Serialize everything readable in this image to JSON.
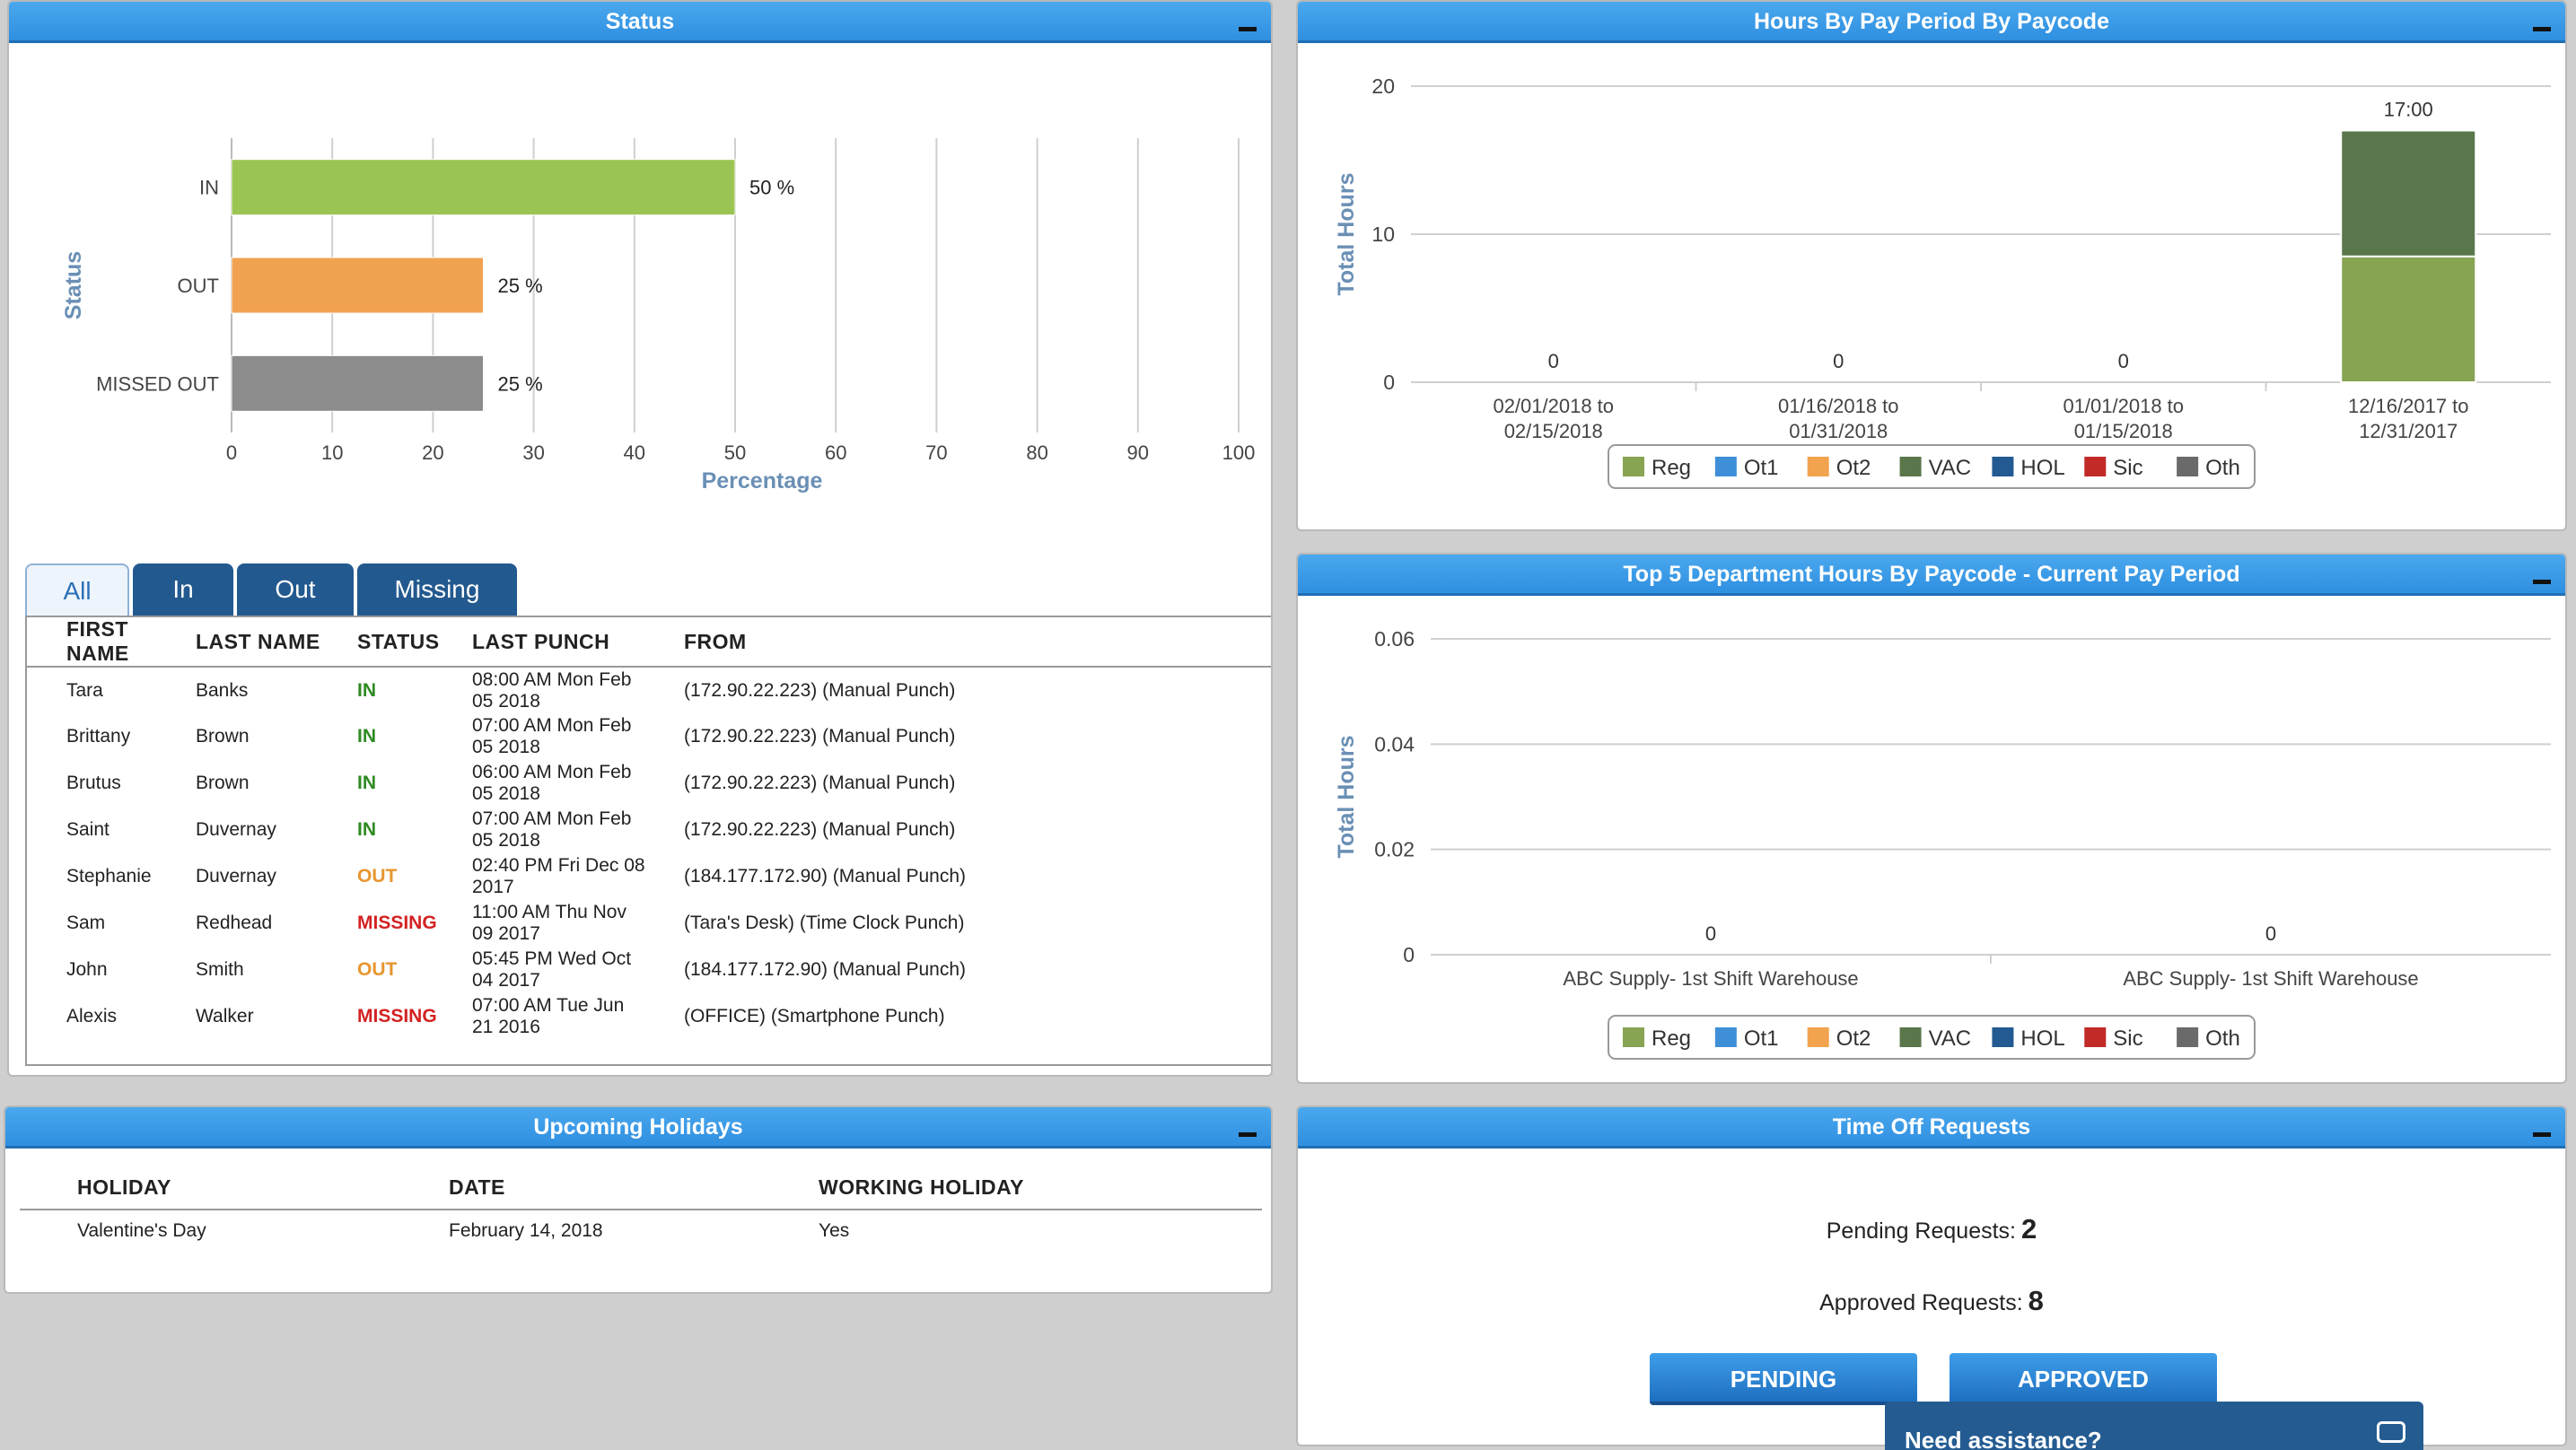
{
  "status_panel": {
    "title": "Status",
    "chart_data": {
      "type": "bar",
      "orientation": "horizontal",
      "categories": [
        "IN",
        "OUT",
        "MISSED OUT"
      ],
      "values": [
        50,
        25,
        25
      ],
      "value_labels": [
        "50 %",
        "25 %",
        "25 %"
      ],
      "colors": [
        "#9bc553",
        "#f1a251",
        "#8c8c8c"
      ],
      "xlabel": "Percentage",
      "ylabel": "Status",
      "xlim": [
        0,
        100
      ],
      "xticks": [
        "0",
        "10",
        "20",
        "30",
        "40",
        "50",
        "60",
        "70",
        "80",
        "90",
        "100"
      ],
      "grid": true
    },
    "tabs": [
      "All",
      "In",
      "Out",
      "Missing"
    ],
    "columns": [
      "FIRST NAME",
      "LAST NAME",
      "STATUS",
      "LAST PUNCH",
      "FROM"
    ],
    "rows": [
      {
        "first": "Tara",
        "last": "Banks",
        "status": "IN",
        "punch1": "08:00 AM Mon Feb",
        "punch2": "05 2018",
        "from": "(172.90.22.223) (Manual Punch)"
      },
      {
        "first": "Brittany",
        "last": "Brown",
        "status": "IN",
        "punch1": "07:00 AM Mon Feb",
        "punch2": "05 2018",
        "from": "(172.90.22.223) (Manual Punch)"
      },
      {
        "first": "Brutus",
        "last": "Brown",
        "status": "IN",
        "punch1": "06:00 AM Mon Feb",
        "punch2": "05 2018",
        "from": "(172.90.22.223) (Manual Punch)"
      },
      {
        "first": "Saint",
        "last": "Duvernay",
        "status": "IN",
        "punch1": "07:00 AM Mon Feb",
        "punch2": "05 2018",
        "from": "(172.90.22.223) (Manual Punch)"
      },
      {
        "first": "Stephanie",
        "last": "Duvernay",
        "status": "OUT",
        "punch1": "02:40 PM Fri Dec 08",
        "punch2": "2017",
        "from": "(184.177.172.90) (Manual Punch)"
      },
      {
        "first": "Sam",
        "last": "Redhead",
        "status": "MISSING",
        "punch1": "11:00 AM Thu Nov",
        "punch2": "09 2017",
        "from": "(Tara's Desk) (Time Clock Punch)"
      },
      {
        "first": "John",
        "last": "Smith",
        "status": "OUT",
        "punch1": "05:45 PM Wed Oct",
        "punch2": "04 2017",
        "from": "(184.177.172.90) (Manual Punch)"
      },
      {
        "first": "Alexis",
        "last": "Walker",
        "status": "MISSING",
        "punch1": "07:00 AM Tue Jun",
        "punch2": "21 2016",
        "from": "(OFFICE) (Smartphone Punch)"
      }
    ]
  },
  "hours_panel": {
    "title": "Hours By Pay Period By Paycode",
    "chart_data": {
      "type": "bar",
      "stacked": true,
      "categories": [
        [
          "02/01/2018 to",
          "02/15/2018"
        ],
        [
          "01/16/2018 to",
          "01/31/2018"
        ],
        [
          "01/01/2018 to",
          "01/15/2018"
        ],
        [
          "12/16/2017 to",
          "12/31/2017"
        ]
      ],
      "total_labels": [
        "0",
        "0",
        "0",
        "17:00"
      ],
      "series": [
        {
          "name": "Reg",
          "color": "#86a452",
          "values": [
            0,
            0,
            0,
            8.5
          ]
        },
        {
          "name": "VAC",
          "color": "#5a764b",
          "values": [
            0,
            0,
            0,
            8.5
          ]
        }
      ],
      "ylabel": "Total Hours",
      "ylim": [
        0,
        20
      ],
      "yticks": [
        "0",
        "10",
        "20"
      ],
      "grid": true
    }
  },
  "dept_panel": {
    "title": "Top 5 Department Hours By Paycode - Current Pay Period",
    "chart_data": {
      "type": "bar",
      "stacked": true,
      "categories": [
        "ABC Supply- 1st Shift Warehouse",
        "ABC Supply- 1st Shift Warehouse"
      ],
      "total_labels": [
        "0",
        "0"
      ],
      "series": [],
      "ylabel": "Total Hours",
      "ylim": [
        0,
        0.06
      ],
      "yticks": [
        "0",
        "0.02",
        "0.04",
        "0.06"
      ],
      "grid": true
    }
  },
  "legend": [
    {
      "name": "Reg",
      "color": "#86a452"
    },
    {
      "name": "Ot1",
      "color": "#3e8fd8"
    },
    {
      "name": "Ot2",
      "color": "#f2a34d"
    },
    {
      "name": "VAC",
      "color": "#5a764b"
    },
    {
      "name": "HOL",
      "color": "#225a91"
    },
    {
      "name": "Sic",
      "color": "#c22a27"
    },
    {
      "name": "Oth",
      "color": "#6a6a6a"
    }
  ],
  "holidays_panel": {
    "title": "Upcoming Holidays",
    "columns": [
      "HOLIDAY",
      "DATE",
      "WORKING HOLIDAY"
    ],
    "rows": [
      {
        "holiday": "Valentine's Day",
        "date": "February 14, 2018",
        "working": "Yes"
      }
    ]
  },
  "timeoff_panel": {
    "title": "Time Off Requests",
    "pending_label": "Pending Requests:",
    "pending_count": "2",
    "approved_label": "Approved Requests:",
    "approved_count": "8",
    "pending_button": "PENDING",
    "approved_button": "APPROVED"
  },
  "assistance": {
    "label": "Need assistance?"
  }
}
